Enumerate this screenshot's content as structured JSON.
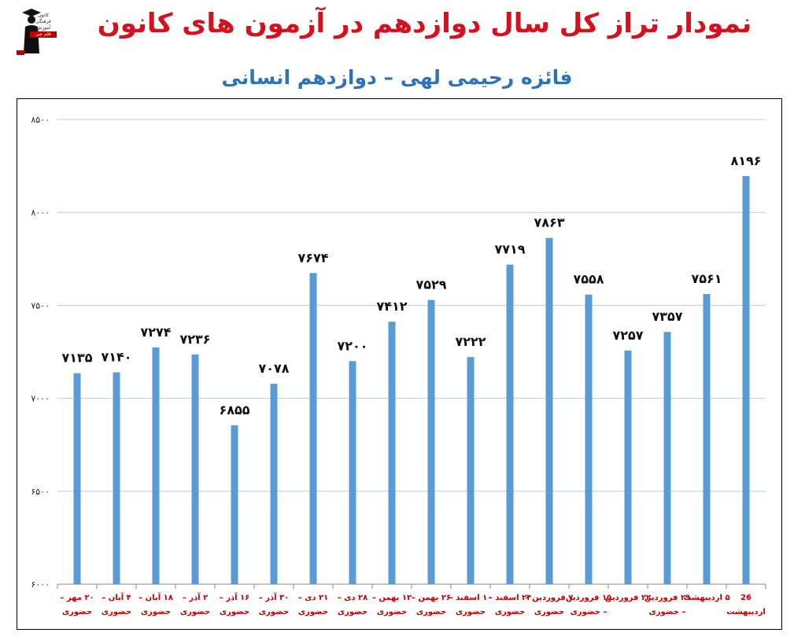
{
  "header": {
    "title": "نمودار تراز کل سال دوازدهم در آزمون های کانون",
    "subtitle": "فائزه رحیمی لهی – دوازدهم انسانی"
  },
  "logo": {
    "icon": "graduate-figure-icon",
    "lines": [
      "کانون",
      "فرهنگی",
      "آموزش",
      "قلم چی"
    ]
  },
  "colors": {
    "title": "#d4111c",
    "subtitle": "#2f72b6",
    "bar": "#5b9bd5",
    "xlabel": "#c00000",
    "grid": "#b7cde6"
  },
  "chart_data": {
    "type": "bar",
    "title": "",
    "xlabel": "",
    "ylabel": "",
    "ylim": [
      6000,
      8500
    ],
    "yticks": [
      6000,
      6500,
      7000,
      7500,
      8000,
      8500
    ],
    "ytick_labels": [
      "۶۰۰۰",
      "۶۵۰۰",
      "۷۰۰۰",
      "۷۵۰۰",
      "۸۰۰۰",
      "۸۵۰۰"
    ],
    "grid": true,
    "legend": "none",
    "categories": [
      [
        "۲۰ مهر –",
        "حضوری"
      ],
      [
        "۴ آبان –",
        "حضوری"
      ],
      [
        "۱۸ آبان –",
        "حضوری"
      ],
      [
        "۲ آذر –",
        "حضوری"
      ],
      [
        "۱۶ آذر –",
        "حضوری"
      ],
      [
        "۳۰ آذر –",
        "حضوری"
      ],
      [
        "۲۱ دی –",
        "حضوری"
      ],
      [
        "۲۸ دی –",
        "حضوری"
      ],
      [
        "۱۲ بهمن –",
        "حضوری"
      ],
      [
        "۲۶ بهمن –",
        "حضوری"
      ],
      [
        "۱۰ اسفند –",
        "حضوری"
      ],
      [
        "۲۴ اسفند –",
        "حضوری"
      ],
      [
        "۷ فروردین –",
        "حضوری"
      ],
      [
        "۱۵ فروردین",
        "– حضوری"
      ],
      [
        "۲۲ فروردین",
        ""
      ],
      [
        "۲۹ فروردین",
        "– حضوری"
      ],
      [
        "۵ اردیبهشت",
        ""
      ],
      [
        "26",
        "اردیبهشت"
      ]
    ],
    "values": [
      7135,
      7140,
      7274,
      7236,
      6855,
      7078,
      7674,
      7200,
      7412,
      7529,
      7222,
      7719,
      7863,
      7558,
      7257,
      7357,
      7561,
      8196
    ],
    "value_labels": [
      "۷۱۳۵",
      "۷۱۴۰",
      "۷۲۷۴",
      "۷۲۳۶",
      "۶۸۵۵",
      "۷۰۷۸",
      "۷۶۷۴",
      "۷۲۰۰",
      "۷۴۱۲",
      "۷۵۲۹",
      "۷۲۲۲",
      "۷۷۱۹",
      "۷۸۶۳",
      "۷۵۵۸",
      "۷۲۵۷",
      "۷۳۵۷",
      "۷۵۶۱",
      "۸۱۹۶"
    ]
  }
}
